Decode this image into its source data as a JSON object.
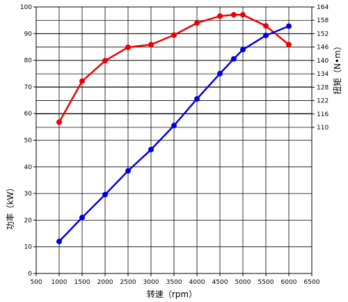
{
  "chart_data": {
    "type": "line",
    "title": "",
    "xlabel": "转速（rpm）",
    "x_ticks": [
      500,
      1000,
      1500,
      2000,
      2500,
      3000,
      3500,
      4000,
      4500,
      5000,
      5500,
      6000,
      6500
    ],
    "xlim": [
      500,
      6500
    ],
    "grid": true,
    "power_axis": {
      "label": "功率（kW）",
      "ticks": [
        0,
        10,
        20,
        30,
        40,
        50,
        60,
        70,
        80,
        90,
        100
      ],
      "ylim": [
        0,
        100
      ],
      "side": "left"
    },
    "torque_axis": {
      "label": "扭矩（N•m）",
      "ticks": [
        110,
        116,
        122,
        128,
        134,
        140,
        146,
        152,
        158,
        164
      ],
      "ylim": [
        110,
        164
      ],
      "side": "right"
    },
    "series": [
      {
        "axis": "torque",
        "color": "#ee0000",
        "x": [
          1000,
          1500,
          2000,
          2500,
          3000,
          3500,
          4000,
          4500,
          4800,
          5000,
          5500,
          6000
        ],
        "values": [
          112.3,
          130.7,
          139.9,
          145.9,
          147.1,
          151.4,
          156.8,
          159.9,
          160.5,
          160.5,
          155.5,
          147.1
        ]
      },
      {
        "axis": "power",
        "color": "#0000dd",
        "x": [
          1000,
          1500,
          2000,
          2500,
          3000,
          3500,
          4000,
          4500,
          4800,
          5000,
          5500,
          6000
        ],
        "values": [
          12,
          21,
          29.6,
          38.5,
          46.5,
          55.5,
          65.5,
          75,
          80.5,
          84,
          89.3,
          92.8
        ]
      }
    ]
  }
}
